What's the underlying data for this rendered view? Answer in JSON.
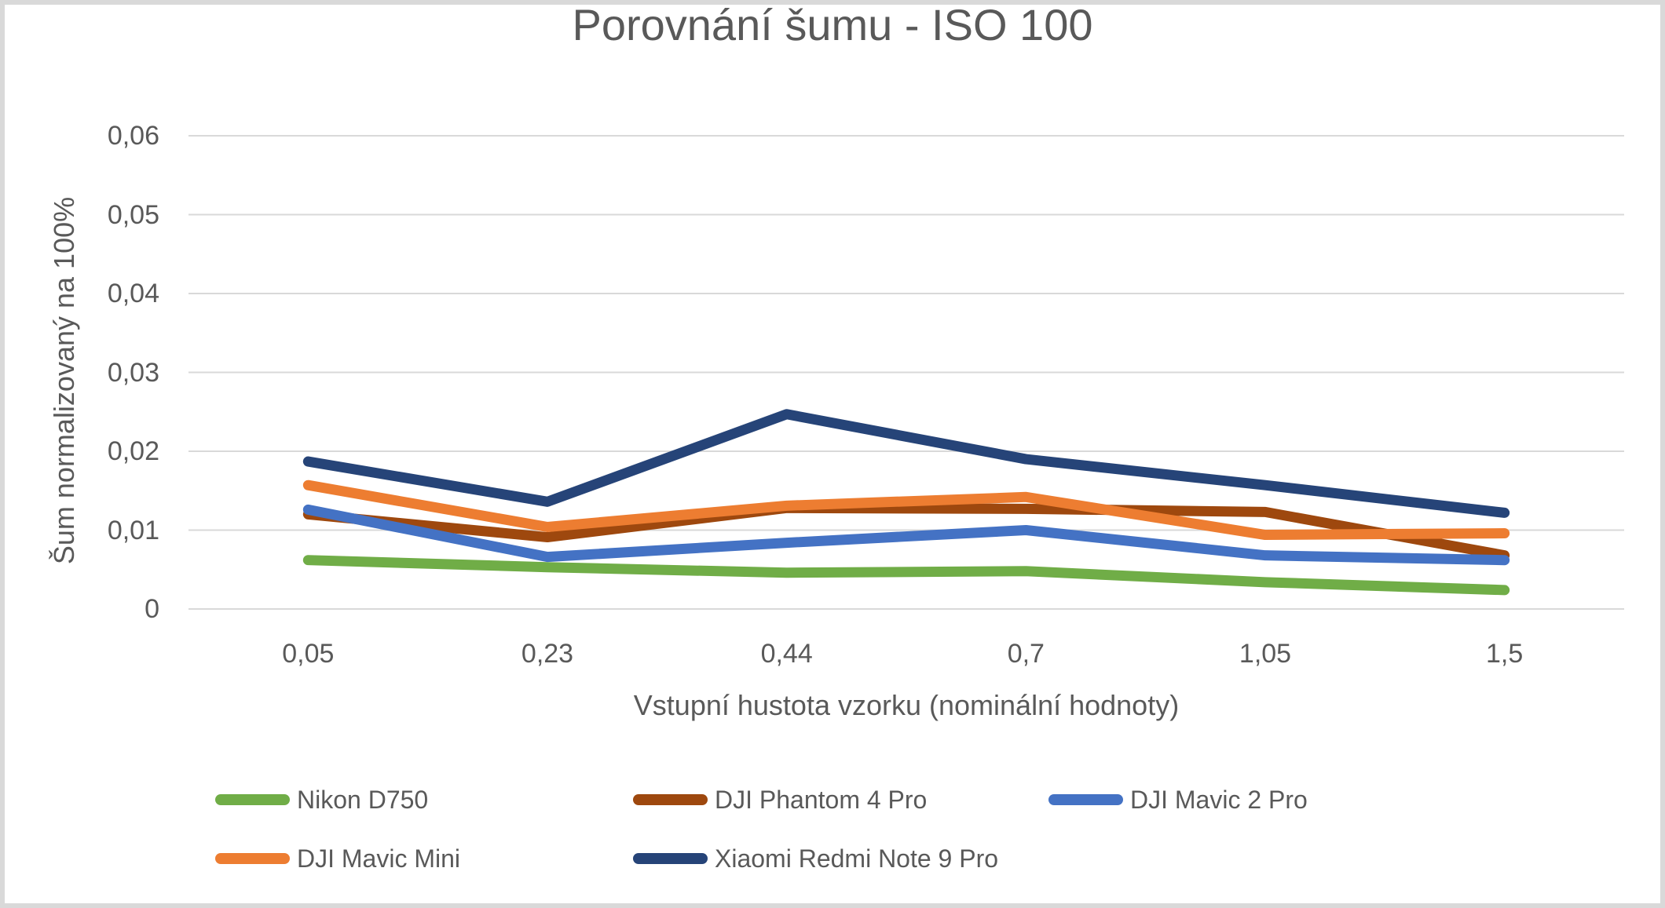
{
  "chart_data": {
    "type": "line",
    "title": "Porovnání šumu - ISO 100",
    "xlabel": "Vstupní hustota vzorku (nominální hodnoty)",
    "ylabel": "Šum normalizovaný na 100%",
    "categories": [
      "0,05",
      "0,23",
      "0,44",
      "0,7",
      "1,05",
      "1,5"
    ],
    "y_ticks": [
      "0",
      "0,01",
      "0,02",
      "0,03",
      "0,04",
      "0,05",
      "0,06"
    ],
    "ylim": [
      0,
      0.06
    ],
    "grid": true,
    "legend_position": "bottom",
    "series": [
      {
        "name": "Nikon D750",
        "color": "#70AD47",
        "values": [
          0.0062,
          0.0053,
          0.0046,
          0.0048,
          0.0034,
          0.0024
        ]
      },
      {
        "name": "DJI Phantom 4 Pro",
        "color": "#9E480E",
        "values": [
          0.012,
          0.0091,
          0.0128,
          0.0127,
          0.0123,
          0.0068
        ]
      },
      {
        "name": "DJI Mavic 2 Pro",
        "color": "#4472C4",
        "values": [
          0.0126,
          0.0066,
          0.0084,
          0.01,
          0.0068,
          0.0062
        ]
      },
      {
        "name": "DJI Mavic Mini",
        "color": "#ED7D31",
        "values": [
          0.0157,
          0.0104,
          0.0131,
          0.0142,
          0.0094,
          0.0096
        ]
      },
      {
        "name": "Xiaomi Redmi Note 9 Pro",
        "color": "#264478",
        "values": [
          0.0187,
          0.0136,
          0.0247,
          0.019,
          0.0157,
          0.0122
        ]
      }
    ],
    "colors": {
      "text": "#595959",
      "gridline": "#D9D9D9",
      "canvas_border": "#D9D9D9",
      "background": "#FFFFFF"
    }
  }
}
